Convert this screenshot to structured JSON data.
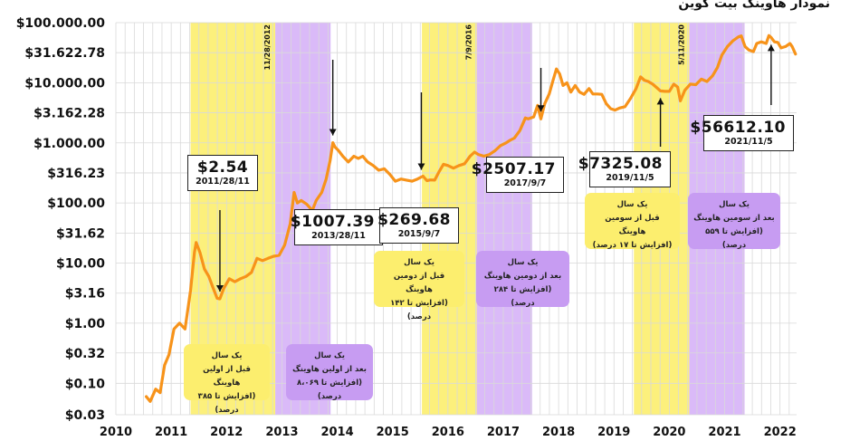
{
  "title": "نمودار هاوینگ بیت کوین",
  "chart_data": {
    "type": "line",
    "title": "نمودار هاوینگ بیت کوین",
    "y_scale": "log",
    "ylim": [
      0.03,
      100000
    ],
    "xlim": [
      2010.0,
      2022.3
    ],
    "y_ticks": [
      {
        "value": 100000,
        "label": "$100.000.00"
      },
      {
        "value": 31622.78,
        "label": "$31.622.78"
      },
      {
        "value": 10000,
        "label": "$10.000.00"
      },
      {
        "value": 3162.28,
        "label": "$3.162.28"
      },
      {
        "value": 1000,
        "label": "$1.000.00"
      },
      {
        "value": 316.23,
        "label": "$316.23"
      },
      {
        "value": 100,
        "label": "$100.00"
      },
      {
        "value": 31.62,
        "label": "$31.62"
      },
      {
        "value": 10,
        "label": "$10.00"
      },
      {
        "value": 3.16,
        "label": "$3.16"
      },
      {
        "value": 1,
        "label": "$1.00"
      },
      {
        "value": 0.32,
        "label": "$0.32"
      },
      {
        "value": 0.1,
        "label": "$0.10"
      },
      {
        "value": 0.03,
        "label": "$0.03"
      }
    ],
    "x_ticks": [
      {
        "value": 2010,
        "label": "2010"
      },
      {
        "value": 2011,
        "label": "2011"
      },
      {
        "value": 2012,
        "label": "2012"
      },
      {
        "value": 2013,
        "label": "2013"
      },
      {
        "value": 2014,
        "label": "2014"
      },
      {
        "value": 2015,
        "label": "2015"
      },
      {
        "value": 2016,
        "label": "2016"
      },
      {
        "value": 2017,
        "label": "2017"
      },
      {
        "value": 2018,
        "label": "2018"
      },
      {
        "value": 2019,
        "label": "2019"
      },
      {
        "value": 2020,
        "label": "2020"
      },
      {
        "value": 2021,
        "label": "2021"
      },
      {
        "value": 2022,
        "label": "2022"
      }
    ],
    "grid": true,
    "line_color": "#f7931a",
    "series": [
      {
        "points": [
          [
            2010.55,
            0.06
          ],
          [
            2010.62,
            0.05
          ],
          [
            2010.72,
            0.08
          ],
          [
            2010.8,
            0.07
          ],
          [
            2010.88,
            0.2
          ],
          [
            2010.96,
            0.3
          ],
          [
            2011.05,
            0.8
          ],
          [
            2011.15,
            1.0
          ],
          [
            2011.25,
            0.8
          ],
          [
            2011.35,
            3.5
          ],
          [
            2011.42,
            15
          ],
          [
            2011.45,
            22
          ],
          [
            2011.52,
            15
          ],
          [
            2011.6,
            8
          ],
          [
            2011.68,
            6
          ],
          [
            2011.75,
            4
          ],
          [
            2011.83,
            2.6
          ],
          [
            2011.88,
            2.54
          ],
          [
            2011.95,
            3.8
          ],
          [
            2012.05,
            5.5
          ],
          [
            2012.15,
            4.9
          ],
          [
            2012.25,
            5.5
          ],
          [
            2012.35,
            6
          ],
          [
            2012.45,
            7
          ],
          [
            2012.55,
            12
          ],
          [
            2012.65,
            11
          ],
          [
            2012.75,
            12
          ],
          [
            2012.85,
            13
          ],
          [
            2012.95,
            13.5
          ],
          [
            2013.05,
            20
          ],
          [
            2013.15,
            45
          ],
          [
            2013.22,
            150
          ],
          [
            2013.28,
            100
          ],
          [
            2013.35,
            110
          ],
          [
            2013.45,
            95
          ],
          [
            2013.55,
            75
          ],
          [
            2013.62,
            110
          ],
          [
            2013.72,
            150
          ],
          [
            2013.8,
            250
          ],
          [
            2013.87,
            500
          ],
          [
            2013.92,
            1007.39
          ],
          [
            2013.96,
            850
          ],
          [
            2014.02,
            750
          ],
          [
            2014.1,
            600
          ],
          [
            2014.2,
            480
          ],
          [
            2014.3,
            600
          ],
          [
            2014.38,
            550
          ],
          [
            2014.46,
            600
          ],
          [
            2014.55,
            480
          ],
          [
            2014.65,
            420
          ],
          [
            2014.75,
            350
          ],
          [
            2014.85,
            370
          ],
          [
            2014.95,
            300
          ],
          [
            2015.05,
            230
          ],
          [
            2015.15,
            250
          ],
          [
            2015.25,
            240
          ],
          [
            2015.35,
            230
          ],
          [
            2015.45,
            250
          ],
          [
            2015.55,
            280
          ],
          [
            2015.62,
            235
          ],
          [
            2015.68,
            242
          ],
          [
            2015.76,
            240
          ],
          [
            2015.84,
            330
          ],
          [
            2015.92,
            440
          ],
          [
            2016.0,
            420
          ],
          [
            2016.1,
            380
          ],
          [
            2016.2,
            420
          ],
          [
            2016.3,
            450
          ],
          [
            2016.4,
            600
          ],
          [
            2016.48,
            700
          ],
          [
            2016.55,
            640
          ],
          [
            2016.65,
            600
          ],
          [
            2016.75,
            640
          ],
          [
            2016.85,
            740
          ],
          [
            2016.95,
            900
          ],
          [
            2017.05,
            1000
          ],
          [
            2017.12,
            1100
          ],
          [
            2017.2,
            1200
          ],
          [
            2017.3,
            1600
          ],
          [
            2017.4,
            2600
          ],
          [
            2017.45,
            2500
          ],
          [
            2017.55,
            2700
          ],
          [
            2017.62,
            4200
          ],
          [
            2017.68,
            2507.17
          ],
          [
            2017.75,
            4500
          ],
          [
            2017.83,
            6500
          ],
          [
            2017.9,
            11000
          ],
          [
            2017.96,
            17000
          ],
          [
            2018.02,
            14000
          ],
          [
            2018.08,
            9000
          ],
          [
            2018.15,
            10000
          ],
          [
            2018.22,
            7000
          ],
          [
            2018.3,
            9000
          ],
          [
            2018.38,
            7000
          ],
          [
            2018.46,
            6400
          ],
          [
            2018.55,
            8000
          ],
          [
            2018.62,
            6500
          ],
          [
            2018.7,
            6500
          ],
          [
            2018.78,
            6400
          ],
          [
            2018.86,
            4500
          ],
          [
            2018.94,
            3700
          ],
          [
            2019.02,
            3500
          ],
          [
            2019.1,
            3800
          ],
          [
            2019.2,
            4000
          ],
          [
            2019.3,
            5500
          ],
          [
            2019.4,
            8000
          ],
          [
            2019.48,
            12500
          ],
          [
            2019.55,
            11000
          ],
          [
            2019.62,
            10500
          ],
          [
            2019.7,
            9500
          ],
          [
            2019.78,
            8200
          ],
          [
            2019.84,
            7325.08
          ],
          [
            2019.92,
            7200
          ],
          [
            2020.0,
            7200
          ],
          [
            2020.08,
            9500
          ],
          [
            2020.15,
            8500
          ],
          [
            2020.2,
            5000
          ],
          [
            2020.28,
            7500
          ],
          [
            2020.38,
            9500
          ],
          [
            2020.48,
            9300
          ],
          [
            2020.58,
            11500
          ],
          [
            2020.68,
            10500
          ],
          [
            2020.78,
            13000
          ],
          [
            2020.87,
            18000
          ],
          [
            2020.95,
            29000
          ],
          [
            2021.05,
            40000
          ],
          [
            2021.15,
            50000
          ],
          [
            2021.25,
            58000
          ],
          [
            2021.3,
            60000
          ],
          [
            2021.37,
            40000
          ],
          [
            2021.44,
            35000
          ],
          [
            2021.52,
            33000
          ],
          [
            2021.58,
            45000
          ],
          [
            2021.66,
            48000
          ],
          [
            2021.75,
            45000
          ],
          [
            2021.8,
            61000
          ],
          [
            2021.84,
            56612.1
          ],
          [
            2021.9,
            48000
          ],
          [
            2021.96,
            47000
          ],
          [
            2022.02,
            38000
          ],
          [
            2022.1,
            40000
          ],
          [
            2022.18,
            45000
          ],
          [
            2022.22,
            40000
          ],
          [
            2022.28,
            30000
          ]
        ]
      }
    ],
    "bands": [
      {
        "from": 2011.35,
        "to": 2012.88,
        "color": "yellow"
      },
      {
        "from": 2012.88,
        "to": 2013.88,
        "color": "purple"
      },
      {
        "from": 2015.53,
        "to": 2016.52,
        "color": "yellow"
      },
      {
        "from": 2016.52,
        "to": 2017.52,
        "color": "purple"
      },
      {
        "from": 2019.36,
        "to": 2020.36,
        "color": "yellow"
      },
      {
        "from": 2020.36,
        "to": 2021.36,
        "color": "purple"
      }
    ],
    "halving_markers": [
      {
        "x": 2012.88,
        "label": "11/28/2012"
      },
      {
        "x": 2016.52,
        "label": "7/9/2016"
      },
      {
        "x": 2020.36,
        "label": "5/11/2020"
      }
    ],
    "annotations": [
      {
        "price": "$2.54",
        "date": "2011/28/11",
        "x": 2011.88,
        "y": 2.54
      },
      {
        "price": "$1007.39",
        "date": "2013/28/11",
        "x": 2013.92,
        "y": 1007.39
      },
      {
        "price": "$269.68",
        "date": "2015/9/7",
        "x": 2015.52,
        "y": 269.68
      },
      {
        "price": "$2507.17",
        "date": "2017/9/7",
        "x": 2017.68,
        "y": 2507.17
      },
      {
        "price": "$7325.08",
        "date": "2019/11/5",
        "x": 2019.84,
        "y": 7325.08
      },
      {
        "price": "$56612.10",
        "date": "2021/11/5",
        "x": 2021.84,
        "y": 56612.1
      }
    ],
    "notes": [
      {
        "color": "yellow",
        "line1": "یک سال",
        "line2": "قبل از اولین هاوینگ",
        "line3": "(افزایش تا ۳۸۵ درصد)"
      },
      {
        "color": "purple",
        "line1": "یک سال",
        "line2": "بعد از اولین هاوینگ",
        "line3": "(افزایش تا ۸،۰۶۹ درصد)"
      },
      {
        "color": "yellow",
        "line1": "یک سال",
        "line2": "قبل از دومین هاوینگ",
        "line3": "(افزایش تا ۱۴۲ درصد)"
      },
      {
        "color": "purple",
        "line1": "یک سال",
        "line2": "بعد از دومین هاوینگ",
        "line3": "(افزایش تا ۲۸۴ درصد)"
      },
      {
        "color": "yellow",
        "line1": "یک سال",
        "line2": "قبل از سومین هاوینگ",
        "line3": "(افزایش تا ۱۷ درصد)"
      },
      {
        "color": "purple",
        "line1": "یک سال",
        "line2": "بعد از سومین هاوینگ",
        "line3": "(افزایش تا ۵۵۹ درصد)"
      }
    ]
  }
}
